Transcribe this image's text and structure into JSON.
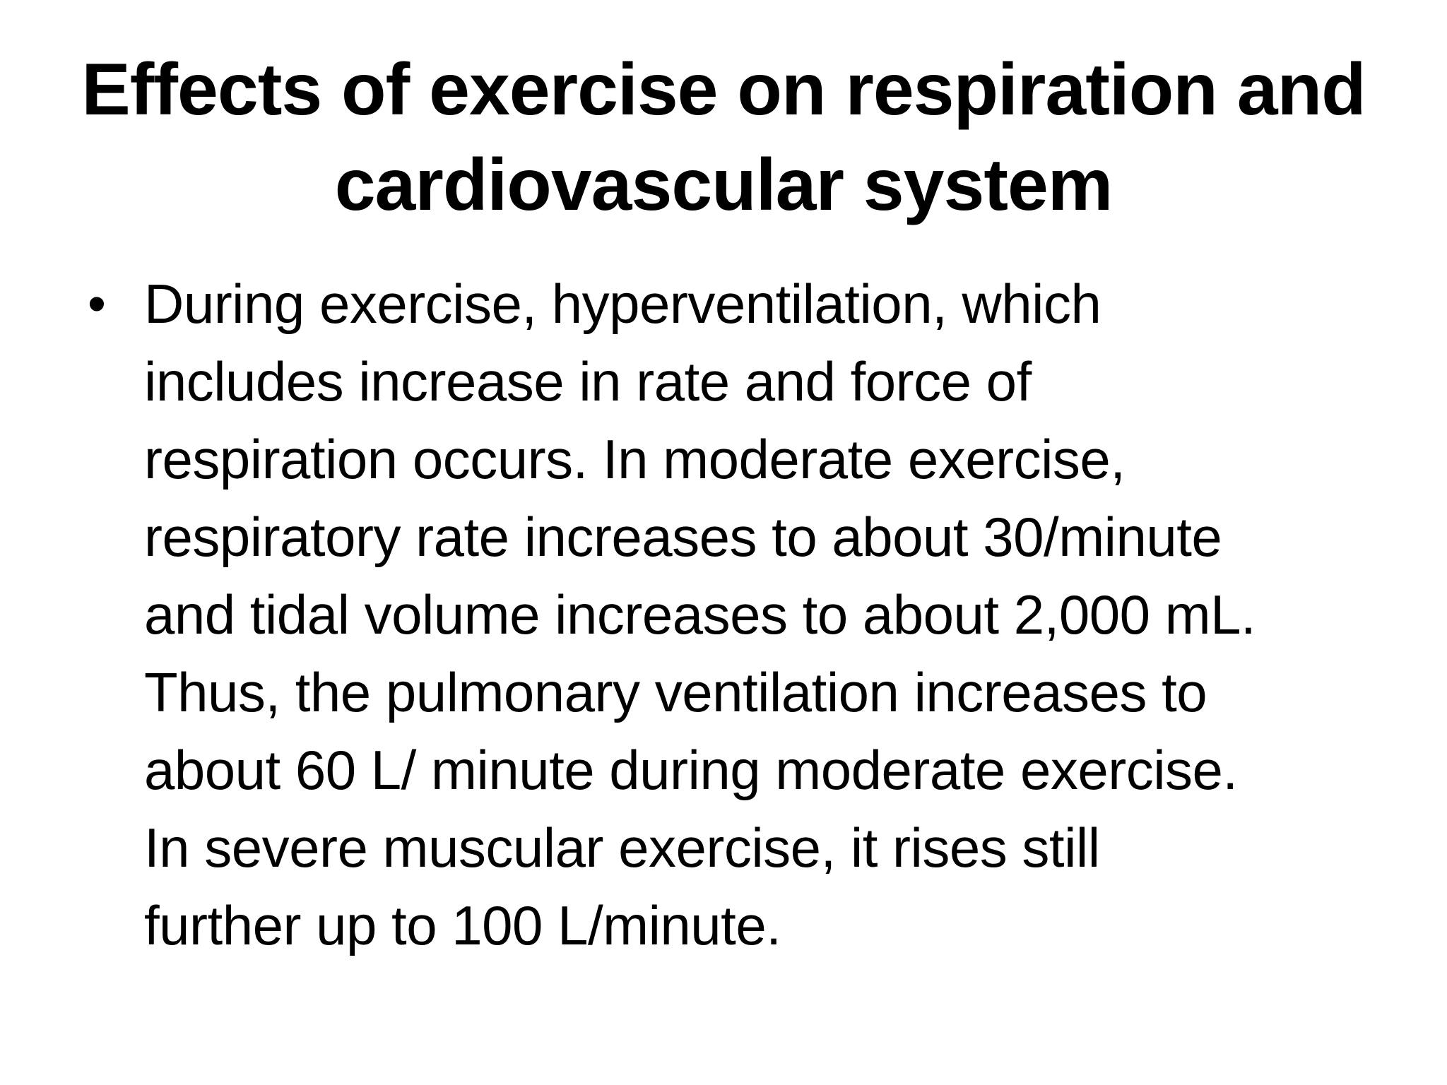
{
  "slide": {
    "title_lines": [
      "Effects of exercise on respiration and",
      "cardiovascular system"
    ],
    "bullets": [
      {
        "marker": "•",
        "lines": [
          "During exercise, hyperventilation, which",
          "includes increase in rate and force of",
          "respiration occurs. In moderate exercise,",
          "respiratory rate increases to about 30/minute",
          "and tidal volume increases to about 2,000 mL.",
          "Thus, the pulmonary ventilation increases to",
          "about 60 L/ minute during moderate exercise.",
          "In severe muscular exercise, it rises still",
          "further up to 100 L/minute."
        ]
      }
    ]
  },
  "colors": {
    "background": "#ffffff",
    "text": "#000000"
  }
}
